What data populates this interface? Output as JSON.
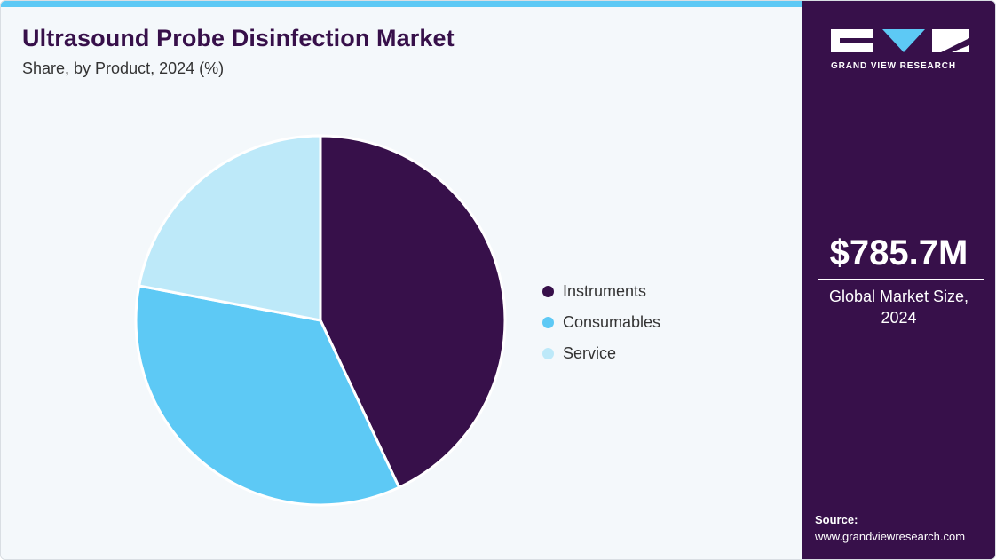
{
  "header": {
    "title": "Ultrasound Probe Disinfection Market",
    "subtitle": "Share, by Product, 2024 (%)"
  },
  "chart_data": {
    "type": "pie",
    "categories": [
      "Instruments",
      "Consumables",
      "Service"
    ],
    "values": [
      43,
      35,
      22
    ],
    "colors": [
      "#37104a",
      "#5dc9f5",
      "#bde9f9"
    ],
    "start_angle_deg": 0,
    "direction": "clockwise",
    "legend_position": "right"
  },
  "sidebar": {
    "brand": "GRAND VIEW RESEARCH",
    "market_value": "$785.7M",
    "market_label_line1": "Global Market Size,",
    "market_label_line2": "2024",
    "source_label": "Source:",
    "source_url": "www.grandviewresearch.com"
  },
  "colors": {
    "accent": "#5dc9f5",
    "brand_purple": "#37104a",
    "background": "#f4f8fb"
  }
}
